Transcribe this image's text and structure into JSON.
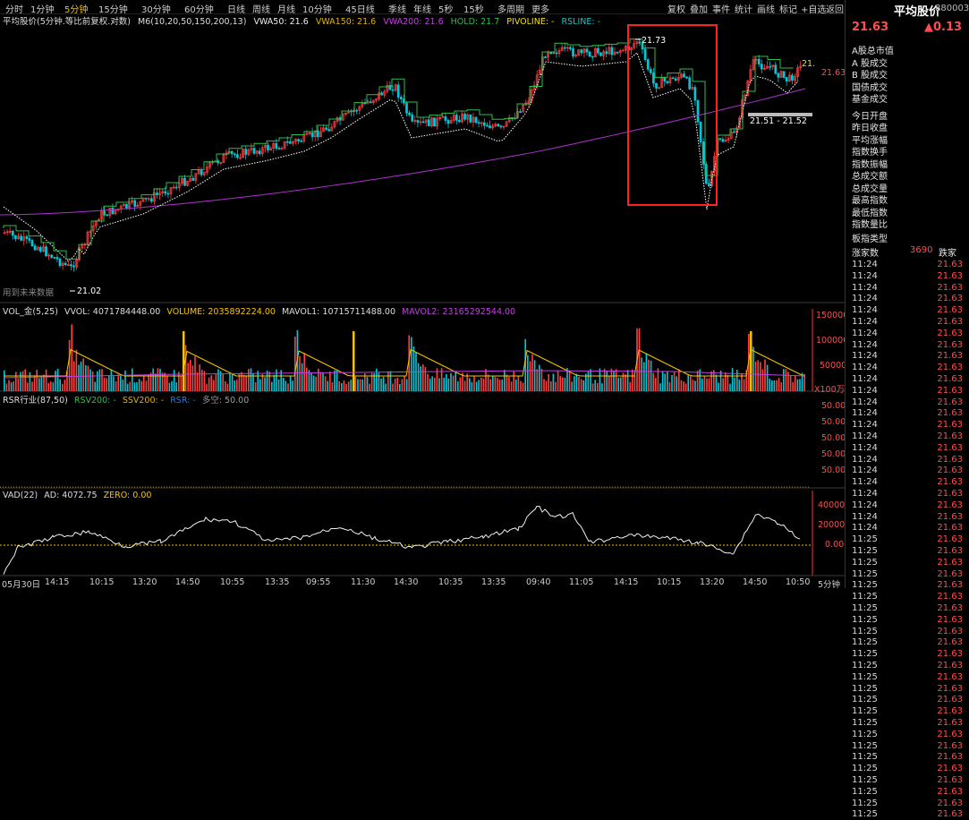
{
  "timeframes": [
    "分时",
    "1分钟",
    "5分钟",
    "15分钟",
    "30分钟",
    "60分钟",
    "日线",
    "周线",
    "月线",
    "10分钟",
    "45日线",
    "季线",
    "年线",
    "5秒",
    "15秒",
    "多周期",
    "更多"
  ],
  "active_timeframe": "5分钟",
  "toolbar": [
    "复权",
    "叠加",
    "事件",
    "统计",
    "画线",
    "标记",
    "+自选",
    "返回"
  ],
  "main_legend": {
    "title": "平均股价(5分钟.等比前复权.对数)",
    "ma": "M6(10,20,50,150,200,13)",
    "vwa50": "VWA50: 21.6",
    "vwa150": "VWA150: 21.6",
    "vwa200": "VWA200: 21.6",
    "hold": "HOLD: 21.7",
    "pivoline": "PIVOLINE: -",
    "rsline": "RSLINE: -"
  },
  "annotations": {
    "high": "21.73",
    "low": "21.02",
    "range": "21.51 - 21.52",
    "last": "21.63",
    "right_edge": "21.",
    "future_data": "用到未来数据"
  },
  "vol_legend": {
    "name": "VOL_金(5,25)",
    "vvol": "VVOL: 4071784448.00",
    "volume": "VOLUME: 2035892224.00",
    "mavol1": "MAVOL1: 10715711488.00",
    "mavol2": "MAVOL2: 23165292544.00",
    "axis": [
      "150000",
      "100000",
      "50000",
      "X100万"
    ]
  },
  "rsr_legend": {
    "name": "RSR行业(87,50)",
    "rsv": "RSV200: -",
    "ssv": "SSV200: -",
    "rsr": "RSR: -",
    "dk": "多空: 50.00",
    "axis": [
      "50.00",
      "50.00",
      "50.00",
      "50.00",
      "50.00"
    ]
  },
  "vad_legend": {
    "name": "VAD(22)",
    "ad": "AD: 4072.75",
    "zero": "ZERO: 0.00",
    "axis": [
      "40000",
      "20000",
      "0.00"
    ]
  },
  "x_axis": [
    "05月30日",
    "14:15",
    "10:15",
    "13:20",
    "14:50",
    "10:55",
    "13:35",
    "09:55",
    "11:30",
    "14:30",
    "10:35",
    "13:35",
    "09:40",
    "11:05",
    "14:15",
    "10:15",
    "13:20",
    "14:50",
    "10:50",
    "5分钟"
  ],
  "side": {
    "title": "平均股价",
    "code": "880003",
    "price": "21.63",
    "change": "▲0.13",
    "fields": [
      "A股总市值",
      "A 股成交",
      "B 股成交",
      "国债成交",
      "基金成交",
      "今日开盘",
      "昨日收盘",
      "平均涨幅",
      "指数换手",
      "指数振幅",
      "总成交额",
      "总成交量",
      "最高指数",
      "最低指数",
      "指数量比",
      "板指类型"
    ],
    "up_label": "涨家数",
    "up_count": "3690",
    "down_label": "跌家",
    "ticks": [
      {
        "t": "11:24",
        "p": "21.63"
      },
      {
        "t": "11:24",
        "p": "21.63"
      },
      {
        "t": "11:24",
        "p": "21.63"
      },
      {
        "t": "11:24",
        "p": "21.63"
      },
      {
        "t": "11:24",
        "p": "21.63"
      },
      {
        "t": "11:24",
        "p": "21.63"
      },
      {
        "t": "11:24",
        "p": "21.63"
      },
      {
        "t": "11:24",
        "p": "21.63"
      },
      {
        "t": "11:24",
        "p": "21.63"
      },
      {
        "t": "11:24",
        "p": "21.63"
      },
      {
        "t": "11:24",
        "p": "21.63"
      },
      {
        "t": "11:24",
        "p": "21.63"
      },
      {
        "t": "11:24",
        "p": "21.63"
      },
      {
        "t": "11:24",
        "p": "21.63"
      },
      {
        "t": "11:24",
        "p": "21.63"
      },
      {
        "t": "11:24",
        "p": "21.63"
      },
      {
        "t": "11:24",
        "p": "21.63"
      },
      {
        "t": "11:24",
        "p": "21.63"
      },
      {
        "t": "11:24",
        "p": "21.63"
      },
      {
        "t": "11:24",
        "p": "21.63"
      },
      {
        "t": "11:24",
        "p": "21.63"
      },
      {
        "t": "11:24",
        "p": "21.63"
      },
      {
        "t": "11:24",
        "p": "21.63"
      },
      {
        "t": "11:24",
        "p": "21.63"
      },
      {
        "t": "11:25",
        "p": "21.63"
      },
      {
        "t": "11:25",
        "p": "21.63"
      },
      {
        "t": "11:25",
        "p": "21.63"
      },
      {
        "t": "11:25",
        "p": "21.63"
      },
      {
        "t": "11:25",
        "p": "21.63"
      },
      {
        "t": "11:25",
        "p": "21.63"
      },
      {
        "t": "11:25",
        "p": "21.63"
      },
      {
        "t": "11:25",
        "p": "21.63"
      },
      {
        "t": "11:25",
        "p": "21.63"
      },
      {
        "t": "11:25",
        "p": "21.63"
      },
      {
        "t": "11:25",
        "p": "21.63"
      },
      {
        "t": "11:25",
        "p": "21.63"
      },
      {
        "t": "11:25",
        "p": "21.63"
      },
      {
        "t": "11:25",
        "p": "21.63"
      },
      {
        "t": "11:25",
        "p": "21.63"
      },
      {
        "t": "11:25",
        "p": "21.63"
      },
      {
        "t": "11:25",
        "p": "21.63"
      },
      {
        "t": "11:25",
        "p": "21.63"
      },
      {
        "t": "11:25",
        "p": "21.63"
      },
      {
        "t": "11:25",
        "p": "21.63"
      },
      {
        "t": "11:25",
        "p": "21.63"
      },
      {
        "t": "11:25",
        "p": "21.63"
      },
      {
        "t": "11:25",
        "p": "21.63"
      },
      {
        "t": "11:25",
        "p": "21.63"
      },
      {
        "t": "11:25",
        "p": "21.63"
      }
    ]
  },
  "colors": {
    "up": "#ff4040",
    "down": "#00c8d8",
    "hold": "#2ec04a",
    "vwa50": "#f0f0f0",
    "vwa200": "#b030d0",
    "highlight": "#ff2020",
    "active": "#f5c400"
  }
}
